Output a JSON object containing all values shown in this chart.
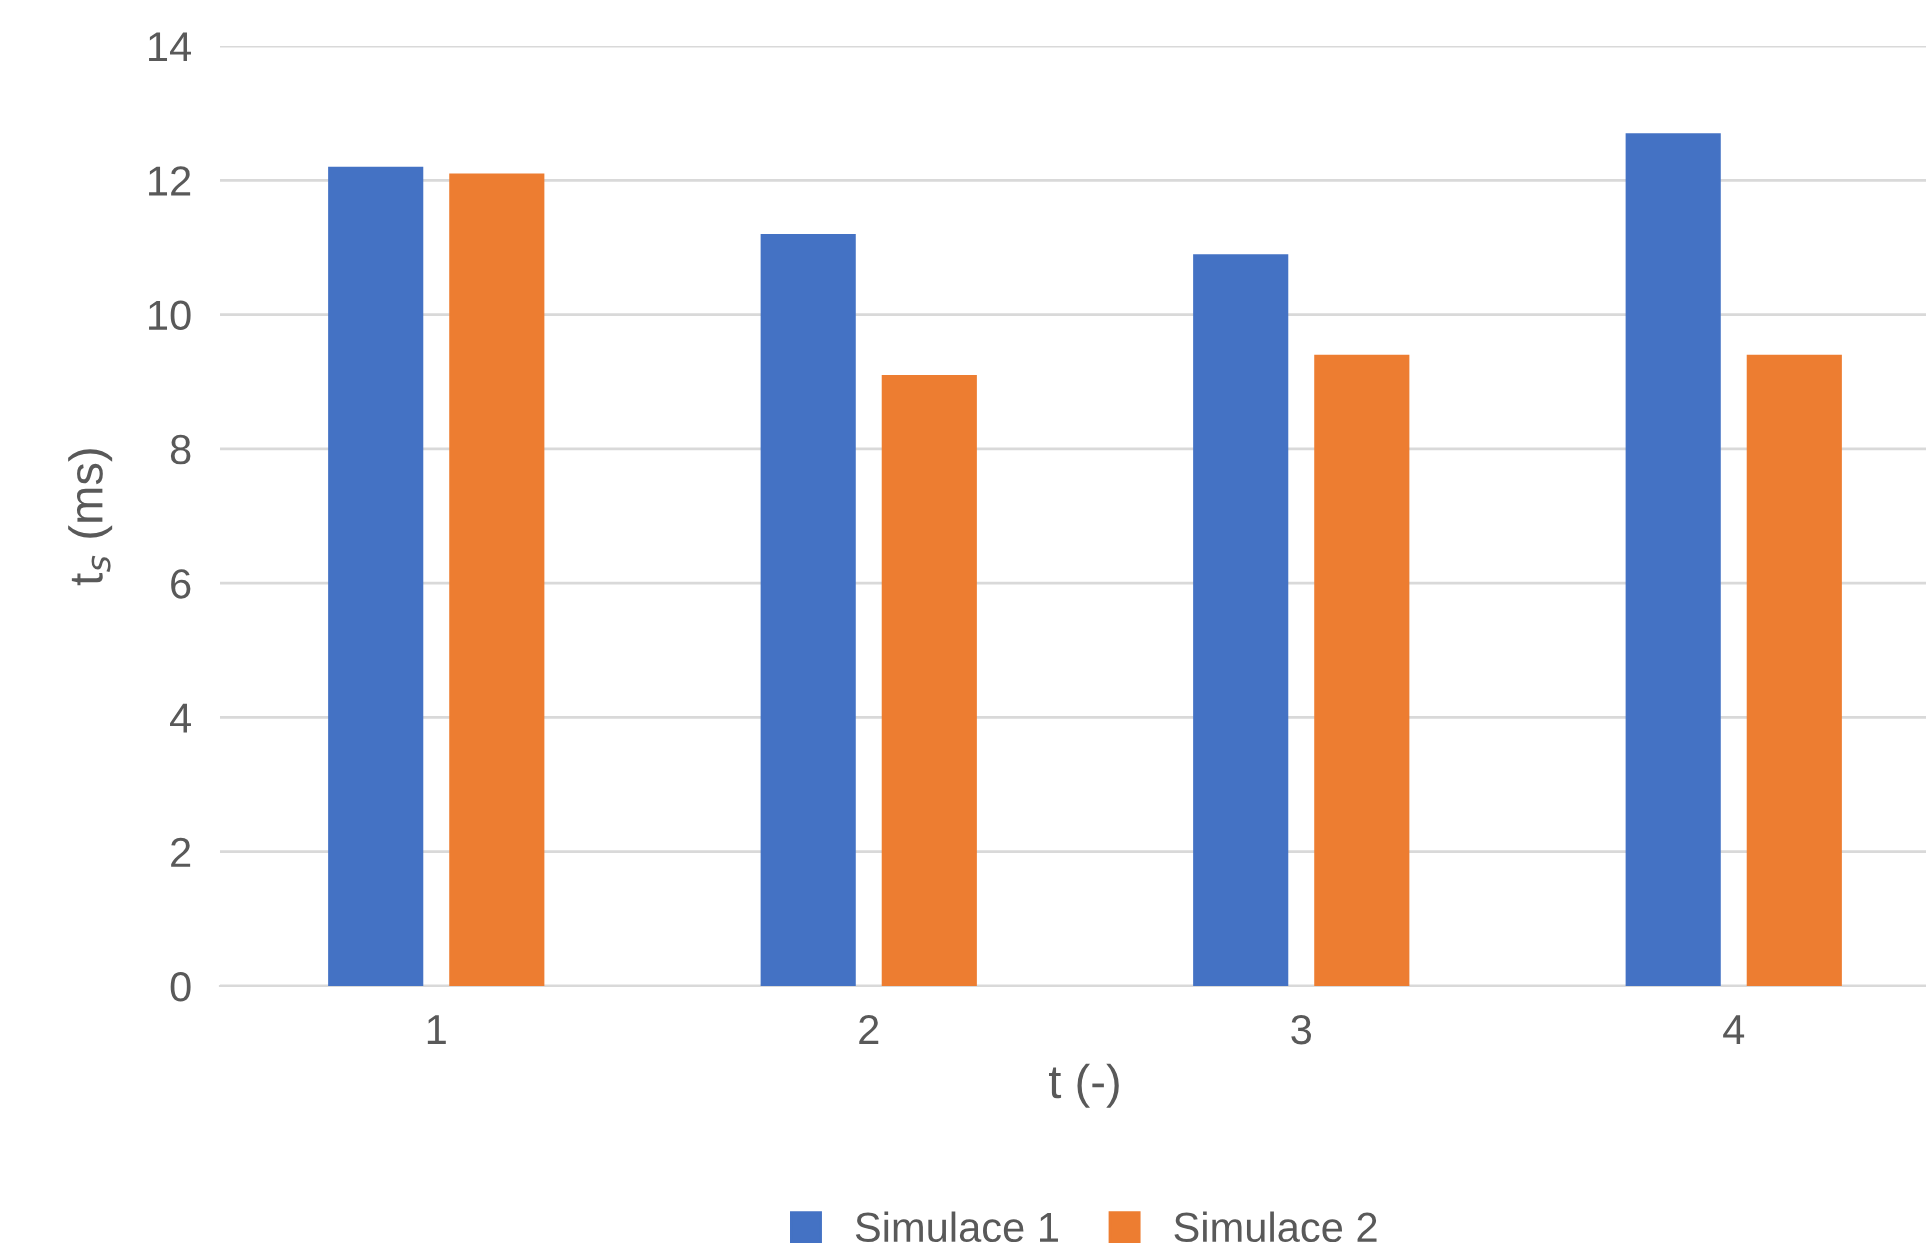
{
  "chart_data": {
    "type": "bar",
    "xlabel": "t (-)",
    "ylabel": "t$_{s}$ (ms)",
    "categories": [
      "1",
      "2",
      "3",
      "4"
    ],
    "series": [
      {
        "name": "Simulace 1",
        "color": "#4472c4",
        "values": [
          12.2,
          11.2,
          10.9,
          12.7
        ]
      },
      {
        "name": "Simulace 2",
        "color": "#ed7d31",
        "values": [
          12.1,
          9.1,
          9.4,
          9.4
        ]
      }
    ],
    "ylim": [
      0,
      14
    ],
    "yticks": [
      0,
      2,
      4,
      6,
      8,
      10,
      12,
      14
    ],
    "grid": "y",
    "legend": "bottom"
  }
}
